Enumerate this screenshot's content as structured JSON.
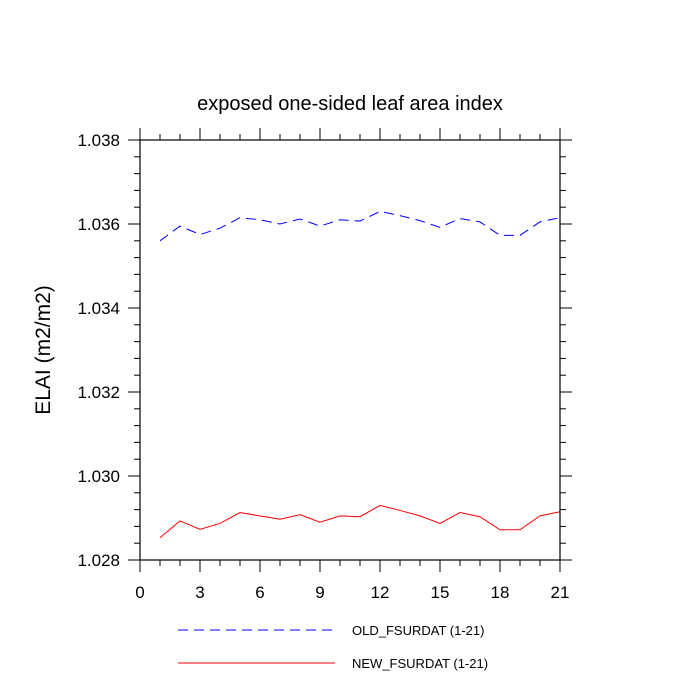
{
  "chart_data": {
    "type": "line",
    "title": "exposed one-sided leaf area index",
    "xlabel": "",
    "ylabel": "ELAI  (m2/m2)",
    "xlim": [
      0,
      21
    ],
    "ylim": [
      1.028,
      1.038
    ],
    "x_ticks": [
      0,
      3,
      6,
      9,
      12,
      15,
      18,
      21
    ],
    "x_tick_labels": [
      "0",
      "3",
      "6",
      "9",
      "12",
      "15",
      "18",
      "21"
    ],
    "y_ticks": [
      1.028,
      1.03,
      1.032,
      1.034,
      1.036,
      1.038
    ],
    "y_tick_labels": [
      "1.028",
      "1.030",
      "1.032",
      "1.034",
      "1.036",
      "1.038"
    ],
    "x": [
      1,
      2,
      3,
      4,
      5,
      6,
      7,
      8,
      9,
      10,
      11,
      12,
      13,
      14,
      15,
      16,
      17,
      18,
      19,
      20,
      21
    ],
    "series": [
      {
        "name": "OLD_FSURDAT (1-21)",
        "color": "#0000ff",
        "dash": "dashed",
        "values": [
          1.0356,
          1.03595,
          1.03575,
          1.0359,
          1.03615,
          1.0361,
          1.036,
          1.03612,
          1.03595,
          1.0361,
          1.03607,
          1.0363,
          1.0362,
          1.03608,
          1.03592,
          1.03613,
          1.03605,
          1.03573,
          1.03573,
          1.03605,
          1.03615
        ]
      },
      {
        "name": "NEW_FSURDAT (1-21)",
        "color": "#ff0000",
        "dash": "solid",
        "values": [
          1.02853,
          1.02893,
          1.02873,
          1.02887,
          1.02913,
          1.02905,
          1.02897,
          1.02908,
          1.0289,
          1.02905,
          1.02903,
          1.0293,
          1.02918,
          1.02905,
          1.02887,
          1.02913,
          1.02903,
          1.02872,
          1.02872,
          1.02905,
          1.02915
        ]
      }
    ],
    "legend_position": "bottom"
  }
}
